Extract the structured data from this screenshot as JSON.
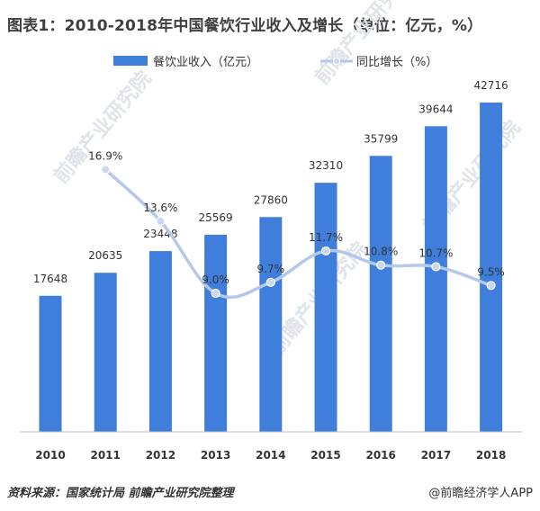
{
  "header": {
    "title": "图表1：2010-2018年中国餐饮行业收入及增长（单位：亿元，%）"
  },
  "footer": {
    "source": "资料来源：国家统计局 前瞻产业研究院整理",
    "brand": "@前瞻经济学人APP"
  },
  "watermark": "前瞻产业研究院",
  "colors": {
    "bar": "#3f7fdb",
    "line": "#b4c8ea",
    "marker": "#c9d8f0",
    "axis": "#bfbfbf"
  },
  "chart_data": {
    "type": "bar",
    "title": "图表1：2010-2018年中国餐饮行业收入及增长（单位：亿元，%）",
    "categories": [
      "2010",
      "2011",
      "2012",
      "2013",
      "2014",
      "2015",
      "2016",
      "2017",
      "2018"
    ],
    "series": [
      {
        "name": "餐饮业收入（亿元）",
        "type": "bar",
        "values": [
          17648,
          20635,
          23448,
          25569,
          27860,
          32310,
          35799,
          39644,
          42716
        ],
        "labels": [
          "17648",
          "20635",
          "23448",
          "25569",
          "27860",
          "32310",
          "35799",
          "39644",
          "42716"
        ]
      },
      {
        "name": "同比增长（%）",
        "type": "line",
        "values": [
          null,
          16.9,
          13.6,
          9.0,
          9.7,
          11.7,
          10.8,
          10.7,
          9.5
        ],
        "labels": [
          "",
          "16.9%",
          "13.6%",
          "9.0%",
          "9.7%",
          "11.7%",
          "10.8%",
          "10.7%",
          "9.5%"
        ]
      }
    ],
    "legend_position": "top-center",
    "grid": false
  }
}
